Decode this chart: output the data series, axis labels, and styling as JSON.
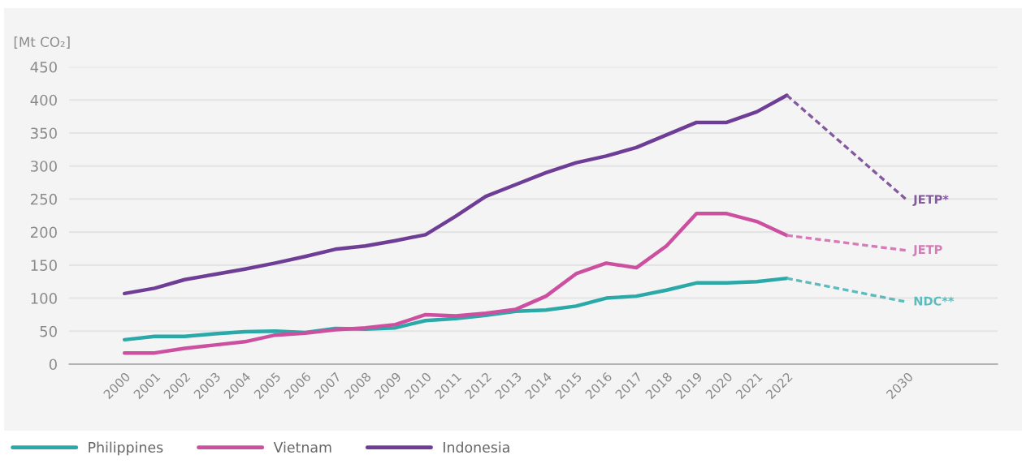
{
  "chart_data": {
    "type": "line",
    "ylabel": "[Mt CO₂]",
    "categories": [
      "2000",
      "2001",
      "2002",
      "2003",
      "2004",
      "2005",
      "2006",
      "2007",
      "2008",
      "2009",
      "2010",
      "2011",
      "2012",
      "2013",
      "2014",
      "2015",
      "2016",
      "2017",
      "2018",
      "2019",
      "2020",
      "2021",
      "2022",
      null,
      null,
      null,
      "2030"
    ],
    "ylim": [
      0,
      450
    ],
    "yticks": [
      0,
      50,
      100,
      150,
      200,
      250,
      300,
      350,
      400,
      450
    ],
    "grid": "y",
    "legend": "bottom left",
    "series": [
      {
        "name": "Philippines",
        "color": "#2ba8a8",
        "line_style": "solid",
        "values": [
          37,
          42,
          42,
          46,
          49,
          50,
          48,
          54,
          53,
          55,
          66,
          69,
          74,
          80,
          82,
          88,
          100,
          103,
          112,
          123,
          123,
          125,
          130,
          null,
          null,
          null,
          null
        ]
      },
      {
        "name": "Vietnam",
        "color": "#cc4fa0",
        "line_style": "solid",
        "values": [
          17,
          17,
          24,
          29,
          34,
          44,
          47,
          52,
          55,
          60,
          75,
          73,
          77,
          83,
          103,
          137,
          153,
          146,
          179,
          228,
          228,
          216,
          195,
          null,
          null,
          null,
          null
        ]
      },
      {
        "name": "Indonesia",
        "color": "#6e3d96",
        "line_style": "solid",
        "values": [
          107,
          115,
          128,
          136,
          144,
          153,
          163,
          174,
          179,
          187,
          196,
          224,
          254,
          272,
          290,
          305,
          315,
          328,
          347,
          366,
          366,
          382,
          407,
          null,
          null,
          null,
          null
        ]
      },
      {
        "color": "#5cbcbc",
        "line_style": "dashed",
        "values": [
          null,
          null,
          null,
          null,
          null,
          null,
          null,
          null,
          null,
          null,
          null,
          null,
          null,
          null,
          null,
          null,
          null,
          null,
          null,
          null,
          null,
          null,
          130,
          null,
          null,
          null,
          94
        ]
      },
      {
        "color": "#d77ab7",
        "line_style": "dashed",
        "values": [
          null,
          null,
          null,
          null,
          null,
          null,
          null,
          null,
          null,
          null,
          null,
          null,
          null,
          null,
          null,
          null,
          null,
          null,
          null,
          null,
          null,
          null,
          195,
          null,
          null,
          null,
          172
        ]
      },
      {
        "color": "#85599f",
        "line_style": "dashed",
        "values": [
          null,
          null,
          null,
          null,
          null,
          null,
          null,
          null,
          null,
          null,
          null,
          null,
          null,
          null,
          null,
          null,
          null,
          null,
          null,
          null,
          null,
          null,
          407,
          null,
          null,
          null,
          248
        ]
      }
    ],
    "annotations": [
      {
        "text": "JETP*",
        "x": "2030",
        "y": 248
      },
      {
        "text": "JETP",
        "x": "2030",
        "y": 172
      },
      {
        "text": "NDC**",
        "x": "2030",
        "y": 94
      }
    ]
  }
}
